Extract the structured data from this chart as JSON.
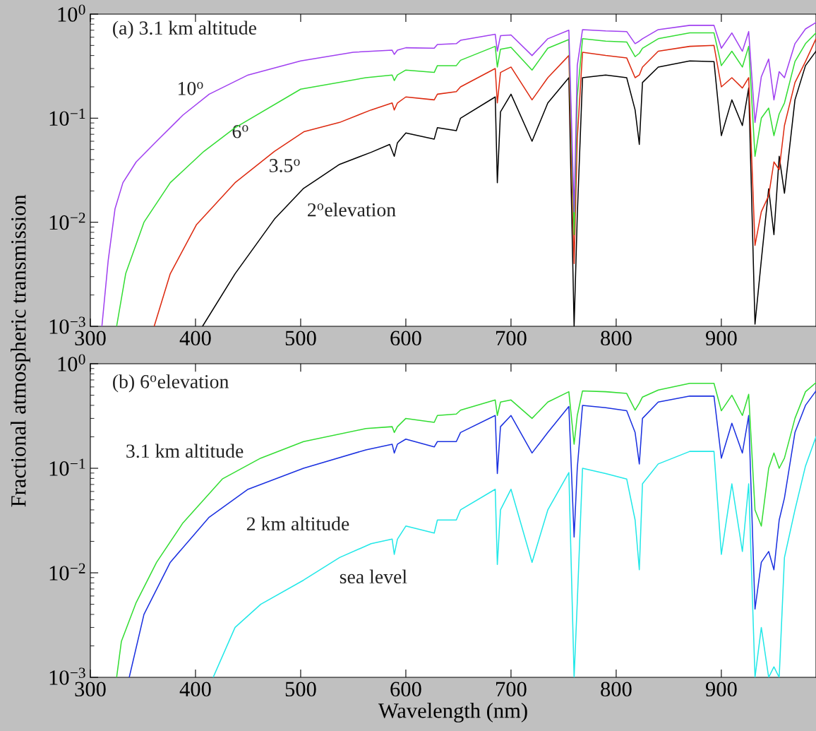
{
  "chart_data": [
    {
      "type": "line",
      "title": "(a) 3.1 km altitude",
      "ylabel": "Fractional atmospheric transmission",
      "log": "y",
      "xlim": [
        300,
        990
      ],
      "xticks": [
        300,
        400,
        500,
        600,
        700,
        800,
        900
      ],
      "ylim": [
        0.001,
        1
      ],
      "yticks": [
        {
          "value": 0.001,
          "label": "10$^{−3}$"
        },
        {
          "value": 0.01,
          "label": "10$^{−2}$"
        },
        {
          "value": 0.1,
          "label": "10$^{−1}$"
        },
        {
          "value": 1,
          "label": "10$^{0}$"
        }
      ],
      "series": [
        {
          "name": "10$^{o}$",
          "color": "#a040f0",
          "x": [
            311,
            317,
            323.5,
            331,
            343.6,
            363,
            388,
            413,
            450,
            500,
            550,
            587,
            589,
            592,
            600,
            627,
            630,
            648,
            652,
            685,
            687,
            690,
            700,
            720,
            735,
            755,
            760,
            763,
            768,
            790,
            810,
            818,
            822,
            825,
            840,
            870,
            893,
            900,
            910,
            920,
            926,
            932,
            938,
            945,
            950,
            955,
            960,
            970,
            980,
            990
          ],
          "values": [
            0.001,
            0.0043,
            0.0135,
            0.024,
            0.038,
            0.06,
            0.107,
            0.17,
            0.26,
            0.355,
            0.43,
            0.45,
            0.41,
            0.45,
            0.475,
            0.47,
            0.51,
            0.52,
            0.56,
            0.64,
            0.44,
            0.62,
            0.63,
            0.4,
            0.58,
            0.7,
            0.0126,
            0.32,
            0.71,
            0.69,
            0.68,
            0.52,
            0.55,
            0.58,
            0.71,
            0.78,
            0.78,
            0.47,
            0.66,
            0.44,
            0.68,
            0.091,
            0.25,
            0.37,
            0.15,
            0.28,
            0.245,
            0.52,
            0.72,
            0.83
          ]
        },
        {
          "name": "6$^{o}$",
          "color": "#33dd33",
          "x": [
            325,
            333.6,
            351,
            376,
            408,
            437.6,
            500,
            562,
            587,
            589,
            592,
            600,
            627,
            630,
            648,
            652,
            685,
            687,
            690,
            700,
            720,
            735,
            755,
            760,
            763,
            768,
            790,
            810,
            818,
            822,
            825,
            840,
            870,
            893,
            900,
            910,
            920,
            926,
            932,
            938,
            945,
            950,
            955,
            960,
            970,
            980,
            990
          ],
          "values": [
            0.001,
            0.0032,
            0.01,
            0.024,
            0.048,
            0.081,
            0.19,
            0.245,
            0.26,
            0.23,
            0.26,
            0.29,
            0.275,
            0.32,
            0.32,
            0.36,
            0.49,
            0.31,
            0.46,
            0.48,
            0.29,
            0.47,
            0.57,
            0.0076,
            0.16,
            0.58,
            0.55,
            0.54,
            0.39,
            0.42,
            0.47,
            0.58,
            0.66,
            0.66,
            0.32,
            0.44,
            0.31,
            0.49,
            0.043,
            0.1,
            0.125,
            0.068,
            0.11,
            0.14,
            0.35,
            0.52,
            0.66
          ]
        },
        {
          "name": "3.5$^{o}$",
          "color": "#dd2a10",
          "x": [
            360.7,
            376,
            401,
            437.6,
            475,
            503,
            537,
            567,
            587,
            589,
            592,
            600,
            627,
            630,
            648,
            652,
            685,
            687,
            690,
            700,
            720,
            735,
            755,
            760,
            763,
            768,
            790,
            810,
            818,
            822,
            825,
            840,
            870,
            893,
            900,
            910,
            920,
            926,
            932,
            938,
            945,
            950,
            955,
            960,
            970,
            980,
            990
          ],
          "values": [
            0.001,
            0.0032,
            0.0095,
            0.024,
            0.048,
            0.074,
            0.091,
            0.12,
            0.14,
            0.12,
            0.14,
            0.16,
            0.15,
            0.17,
            0.18,
            0.2,
            0.3,
            0.14,
            0.275,
            0.31,
            0.15,
            0.245,
            0.4,
            0.004,
            0.063,
            0.43,
            0.4,
            0.38,
            0.245,
            0.26,
            0.31,
            0.44,
            0.49,
            0.5,
            0.2,
            0.245,
            0.195,
            0.245,
            0.006,
            0.0126,
            0.018,
            0.038,
            0.032,
            0.085,
            0.22,
            0.35,
            0.58
          ]
        },
        {
          "name": "2$^{o}$elevation",
          "color": "#000000",
          "x": [
            406.7,
            437.6,
            475,
            502.4,
            537,
            567,
            584.6,
            589,
            592,
            600,
            627,
            630,
            648,
            652,
            685,
            687,
            690,
            700,
            720,
            735,
            755,
            760,
            763,
            768,
            790,
            810,
            818,
            822,
            825,
            840,
            870,
            893,
            900,
            910,
            920,
            926,
            932,
            938,
            945,
            950,
            955,
            960,
            970,
            980,
            990
          ],
          "values": [
            0.001,
            0.0032,
            0.0107,
            0.021,
            0.036,
            0.047,
            0.056,
            0.043,
            0.058,
            0.072,
            0.063,
            0.081,
            0.076,
            0.1,
            0.16,
            0.024,
            0.115,
            0.17,
            0.06,
            0.14,
            0.245,
            0.001,
            0.0115,
            0.245,
            0.26,
            0.245,
            0.12,
            0.056,
            0.22,
            0.31,
            0.355,
            0.35,
            0.068,
            0.15,
            0.085,
            0.195,
            0.00105,
            0.0043,
            0.021,
            0.0076,
            0.043,
            0.019,
            0.15,
            0.32,
            0.44
          ]
        }
      ]
    },
    {
      "type": "line",
      "title": "(b) 6$^{o}$elevation",
      "xlabel": "Wavelength (nm)",
      "log": "y",
      "xlim": [
        300,
        990
      ],
      "xticks": [
        300,
        400,
        500,
        600,
        700,
        800,
        900
      ],
      "ylim": [
        0.001,
        1
      ],
      "yticks": [
        {
          "value": 0.001,
          "label": "10$^{−3}$"
        },
        {
          "value": 0.01,
          "label": "10$^{−2}$"
        },
        {
          "value": 0.1,
          "label": "10$^{−1}$"
        },
        {
          "value": 1,
          "label": "10$^{0}$"
        }
      ],
      "series": [
        {
          "name": "3.1 km altitude",
          "color": "#33dd33",
          "x": [
            325,
            329.5,
            343.6,
            363,
            388,
            425.5,
            462,
            502.7,
            562,
            587,
            589,
            592,
            600,
            627,
            630,
            648,
            652,
            685,
            687,
            690,
            700,
            720,
            735,
            755,
            760,
            763,
            768,
            790,
            810,
            818,
            822,
            825,
            840,
            870,
            893,
            900,
            910,
            920,
            926,
            932,
            938,
            945,
            950,
            955,
            960,
            970,
            980,
            990
          ],
          "values": [
            0.001,
            0.0022,
            0.0052,
            0.0126,
            0.03,
            0.079,
            0.125,
            0.18,
            0.24,
            0.25,
            0.22,
            0.25,
            0.3,
            0.275,
            0.32,
            0.33,
            0.36,
            0.45,
            0.32,
            0.43,
            0.45,
            0.3,
            0.43,
            0.54,
            0.17,
            0.32,
            0.55,
            0.54,
            0.52,
            0.36,
            0.42,
            0.48,
            0.56,
            0.65,
            0.65,
            0.355,
            0.5,
            0.32,
            0.51,
            0.04,
            0.028,
            0.1,
            0.14,
            0.1,
            0.125,
            0.3,
            0.54,
            0.66
          ]
        },
        {
          "name": "2 km altitude",
          "color": "#1a30e0",
          "x": [
            337,
            351,
            376,
            413,
            450,
            502.7,
            562,
            587,
            589,
            592,
            600,
            627,
            630,
            648,
            652,
            685,
            687,
            690,
            700,
            720,
            735,
            755,
            760,
            763,
            768,
            790,
            810,
            818,
            822,
            825,
            840,
            870,
            893,
            900,
            910,
            920,
            926,
            932,
            938,
            945,
            950,
            955,
            960,
            970,
            980,
            990
          ],
          "values": [
            0.001,
            0.004,
            0.0126,
            0.034,
            0.063,
            0.1,
            0.15,
            0.17,
            0.14,
            0.17,
            0.19,
            0.16,
            0.18,
            0.18,
            0.22,
            0.32,
            0.089,
            0.25,
            0.32,
            0.14,
            0.22,
            0.39,
            0.022,
            0.1,
            0.4,
            0.38,
            0.355,
            0.22,
            0.11,
            0.3,
            0.43,
            0.49,
            0.49,
            0.125,
            0.27,
            0.14,
            0.32,
            0.0045,
            0.0126,
            0.016,
            0.0107,
            0.032,
            0.052,
            0.22,
            0.4,
            0.55
          ]
        },
        {
          "name": "sea level",
          "color": "#22e8e8",
          "x": [
            416.8,
            437.6,
            462,
            502.7,
            537,
            567,
            587,
            589,
            592,
            600,
            627,
            630,
            648,
            652,
            685,
            687,
            690,
            700,
            720,
            735,
            755,
            760,
            763,
            768,
            790,
            810,
            818,
            822,
            825,
            840,
            870,
            893,
            900,
            910,
            920,
            926,
            932,
            938,
            945,
            950,
            955,
            960,
            970,
            980,
            990
          ],
          "values": [
            0.001,
            0.003,
            0.005,
            0.0085,
            0.014,
            0.019,
            0.021,
            0.015,
            0.021,
            0.028,
            0.024,
            0.032,
            0.032,
            0.04,
            0.063,
            0.012,
            0.04,
            0.063,
            0.0126,
            0.04,
            0.091,
            0.001,
            0.0052,
            0.1,
            0.089,
            0.079,
            0.032,
            0.0107,
            0.071,
            0.11,
            0.145,
            0.145,
            0.015,
            0.071,
            0.016,
            0.071,
            0.001,
            0.003,
            0.001,
            0.00126,
            0.001,
            0.014,
            0.04,
            0.105,
            0.2
          ]
        }
      ]
    }
  ]
}
